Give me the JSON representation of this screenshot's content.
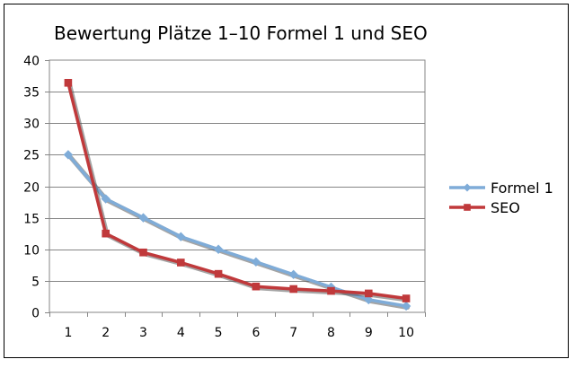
{
  "chart_data": {
    "type": "line",
    "title": "Bewertung Plätze 1–10 Formel 1 und SEO",
    "xlabel": "",
    "ylabel": "",
    "categories": [
      "1",
      "2",
      "3",
      "4",
      "5",
      "6",
      "7",
      "8",
      "9",
      "10"
    ],
    "ylim": [
      0,
      40
    ],
    "yticks": [
      "0",
      "5",
      "10",
      "15",
      "20",
      "25",
      "30",
      "35",
      "40"
    ],
    "grid": true,
    "legend_position": "right",
    "series": [
      {
        "name": "Formel 1",
        "color": "#7FACD8",
        "marker": "diamond",
        "values": [
          25,
          18,
          15,
          12,
          10,
          8,
          6,
          4,
          2,
          1
        ]
      },
      {
        "name": "SEO",
        "color": "#C0393B",
        "marker": "square",
        "values": [
          36.4,
          12.5,
          9.5,
          7.9,
          6.1,
          4.1,
          3.7,
          3.4,
          3.0,
          2.2
        ]
      }
    ]
  }
}
